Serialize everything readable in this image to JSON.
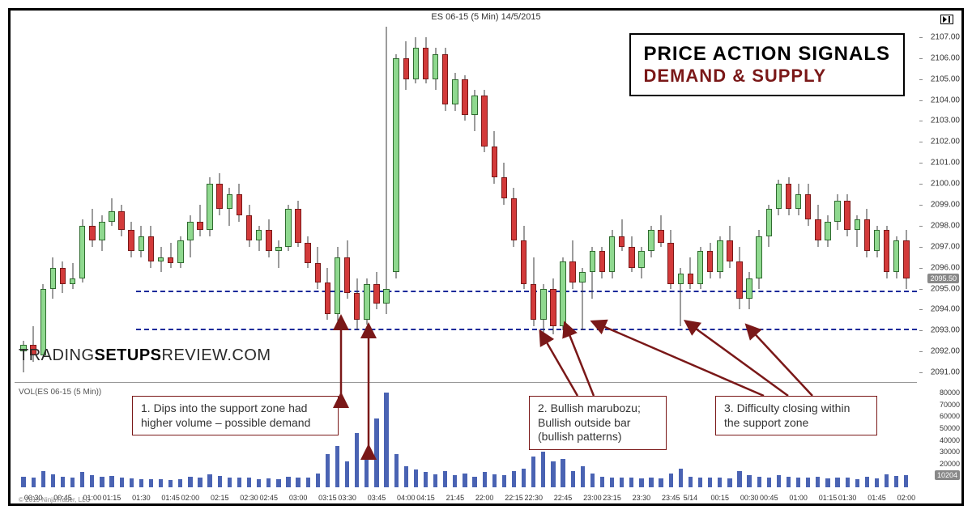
{
  "header": {
    "chart_title": "ES 06-15 (5 Min)  14/5/2015"
  },
  "title_box": {
    "line1": "PRICE ACTION SIGNALS",
    "line2": "DEMAND & SUPPLY"
  },
  "watermark": {
    "part1": "TRADING",
    "part2": "SETUPS",
    "part3": "REVIEW.COM"
  },
  "volume_label": "VOL(ES 06-15 (5 Min))",
  "copyright": "© 2015 NinjaTrader, LLC",
  "price_axis": {
    "min": 2090.5,
    "max": 2107.5,
    "ticks": [
      2091.0,
      2092.0,
      2093.0,
      2094.0,
      2095.0,
      2096.0,
      2097.0,
      2098.0,
      2099.0,
      2100.0,
      2101.0,
      2102.0,
      2103.0,
      2104.0,
      2105.0,
      2106.0,
      2107.0
    ],
    "last_price": 2095.5
  },
  "volume_axis": {
    "max": 85000,
    "ticks": [
      10000,
      20000,
      30000,
      40000,
      50000,
      60000,
      70000,
      80000
    ],
    "last_vol": 10204
  },
  "support_zone": {
    "upper": 2094.9,
    "lower": 2093.1
  },
  "x_labels": [
    "00:30",
    "00:45",
    "01:00",
    "01:15",
    "01:30",
    "01:45",
    "02:00",
    "02:15",
    "02:30",
    "02:45",
    "03:00",
    "03:15",
    "03:30",
    "03:45",
    "04:00",
    "04:15",
    "21:45",
    "22:00",
    "22:15",
    "22:30",
    "22:45",
    "23:00",
    "23:15",
    "23:30",
    "23:45",
    "5/14",
    "00:15",
    "00:30",
    "00:45",
    "01:00",
    "01:15",
    "01:30",
    "01:45",
    "02:00"
  ],
  "colors": {
    "bull_fill": "#8fd98f",
    "bull_border": "#2f6b2f",
    "bear_fill": "#d33a3a",
    "bear_border": "#7a1818",
    "wick": "#3a3a3a",
    "volume": "#4a63b3",
    "support_line": "#1a2a9a",
    "arrow": "#7a1818"
  },
  "candles": [
    {
      "o": 2092.0,
      "h": 2092.5,
      "l": 2091.0,
      "c": 2092.3,
      "v": 9000
    },
    {
      "o": 2092.3,
      "h": 2093.2,
      "l": 2091.5,
      "c": 2091.8,
      "v": 8000
    },
    {
      "o": 2091.8,
      "h": 2095.2,
      "l": 2091.8,
      "c": 2095.0,
      "v": 14000
    },
    {
      "o": 2095.0,
      "h": 2096.5,
      "l": 2094.5,
      "c": 2096.0,
      "v": 11000
    },
    {
      "o": 2096.0,
      "h": 2096.3,
      "l": 2094.8,
      "c": 2095.2,
      "v": 9000
    },
    {
      "o": 2095.2,
      "h": 2096.2,
      "l": 2095.0,
      "c": 2095.5,
      "v": 8000
    },
    {
      "o": 2095.5,
      "h": 2098.3,
      "l": 2095.3,
      "c": 2098.0,
      "v": 13000
    },
    {
      "o": 2098.0,
      "h": 2098.8,
      "l": 2097.0,
      "c": 2097.3,
      "v": 10000
    },
    {
      "o": 2097.3,
      "h": 2098.5,
      "l": 2096.8,
      "c": 2098.2,
      "v": 9000
    },
    {
      "o": 2098.2,
      "h": 2099.3,
      "l": 2098.0,
      "c": 2098.7,
      "v": 9500
    },
    {
      "o": 2098.7,
      "h": 2099.0,
      "l": 2097.5,
      "c": 2097.8,
      "v": 8000
    },
    {
      "o": 2097.8,
      "h": 2098.2,
      "l": 2096.5,
      "c": 2096.8,
      "v": 7500
    },
    {
      "o": 2096.8,
      "h": 2098.0,
      "l": 2096.5,
      "c": 2097.5,
      "v": 7000
    },
    {
      "o": 2097.5,
      "h": 2098.0,
      "l": 2096.0,
      "c": 2096.3,
      "v": 7200
    },
    {
      "o": 2096.3,
      "h": 2097.0,
      "l": 2095.8,
      "c": 2096.5,
      "v": 6800
    },
    {
      "o": 2096.5,
      "h": 2097.2,
      "l": 2096.0,
      "c": 2096.2,
      "v": 6500
    },
    {
      "o": 2096.2,
      "h": 2097.5,
      "l": 2096.0,
      "c": 2097.3,
      "v": 7000
    },
    {
      "o": 2097.3,
      "h": 2098.5,
      "l": 2096.5,
      "c": 2098.2,
      "v": 9000
    },
    {
      "o": 2098.2,
      "h": 2099.0,
      "l": 2097.5,
      "c": 2097.8,
      "v": 8500
    },
    {
      "o": 2097.8,
      "h": 2100.3,
      "l": 2097.5,
      "c": 2100.0,
      "v": 11000
    },
    {
      "o": 2100.0,
      "h": 2100.5,
      "l": 2098.5,
      "c": 2098.8,
      "v": 9500
    },
    {
      "o": 2098.8,
      "h": 2099.8,
      "l": 2098.0,
      "c": 2099.5,
      "v": 8000
    },
    {
      "o": 2099.5,
      "h": 2100.0,
      "l": 2098.2,
      "c": 2098.5,
      "v": 8200
    },
    {
      "o": 2098.5,
      "h": 2099.0,
      "l": 2097.0,
      "c": 2097.3,
      "v": 8500
    },
    {
      "o": 2097.3,
      "h": 2098.0,
      "l": 2096.8,
      "c": 2097.8,
      "v": 7000
    },
    {
      "o": 2097.8,
      "h": 2098.3,
      "l": 2096.5,
      "c": 2096.8,
      "v": 7500
    },
    {
      "o": 2096.8,
      "h": 2097.3,
      "l": 2096.0,
      "c": 2097.0,
      "v": 6800
    },
    {
      "o": 2097.0,
      "h": 2099.0,
      "l": 2096.8,
      "c": 2098.8,
      "v": 9000
    },
    {
      "o": 2098.8,
      "h": 2099.2,
      "l": 2097.0,
      "c": 2097.2,
      "v": 8500
    },
    {
      "o": 2097.2,
      "h": 2097.5,
      "l": 2096.0,
      "c": 2096.2,
      "v": 8000
    },
    {
      "o": 2096.2,
      "h": 2097.0,
      "l": 2095.0,
      "c": 2095.3,
      "v": 12000
    },
    {
      "o": 2095.3,
      "h": 2096.0,
      "l": 2093.5,
      "c": 2093.8,
      "v": 28000
    },
    {
      "o": 2093.8,
      "h": 2097.0,
      "l": 2093.2,
      "c": 2096.5,
      "v": 35000
    },
    {
      "o": 2096.5,
      "h": 2097.3,
      "l": 2094.5,
      "c": 2094.8,
      "v": 22000
    },
    {
      "o": 2094.8,
      "h": 2095.5,
      "l": 2093.0,
      "c": 2093.5,
      "v": 46000
    },
    {
      "o": 2093.5,
      "h": 2095.5,
      "l": 2093.3,
      "c": 2095.2,
      "v": 30000
    },
    {
      "o": 2095.2,
      "h": 2095.8,
      "l": 2094.0,
      "c": 2094.3,
      "v": 58000
    },
    {
      "o": 2094.3,
      "h": 2107.5,
      "l": 2093.8,
      "c": 2095.0,
      "v": 80000
    },
    {
      "o": 2095.8,
      "h": 2106.2,
      "l": 2095.5,
      "c": 2106.0,
      "v": 28000
    },
    {
      "o": 2106.0,
      "h": 2106.8,
      "l": 2104.5,
      "c": 2105.0,
      "v": 18000
    },
    {
      "o": 2105.0,
      "h": 2107.0,
      "l": 2104.8,
      "c": 2106.5,
      "v": 15000
    },
    {
      "o": 2106.5,
      "h": 2107.0,
      "l": 2104.8,
      "c": 2105.0,
      "v": 13000
    },
    {
      "o": 2105.0,
      "h": 2106.5,
      "l": 2104.5,
      "c": 2106.2,
      "v": 11000
    },
    {
      "o": 2106.2,
      "h": 2106.5,
      "l": 2103.5,
      "c": 2103.8,
      "v": 14000
    },
    {
      "o": 2103.8,
      "h": 2105.3,
      "l": 2103.5,
      "c": 2105.0,
      "v": 10000
    },
    {
      "o": 2105.0,
      "h": 2105.2,
      "l": 2103.0,
      "c": 2103.3,
      "v": 12000
    },
    {
      "o": 2103.3,
      "h": 2104.5,
      "l": 2102.5,
      "c": 2104.2,
      "v": 9000
    },
    {
      "o": 2104.2,
      "h": 2104.5,
      "l": 2101.5,
      "c": 2101.8,
      "v": 13000
    },
    {
      "o": 2101.8,
      "h": 2102.5,
      "l": 2100.0,
      "c": 2100.3,
      "v": 11000
    },
    {
      "o": 2100.3,
      "h": 2101.0,
      "l": 2099.0,
      "c": 2099.3,
      "v": 10000
    },
    {
      "o": 2099.3,
      "h": 2099.8,
      "l": 2097.0,
      "c": 2097.3,
      "v": 14000
    },
    {
      "o": 2097.3,
      "h": 2098.0,
      "l": 2095.0,
      "c": 2095.2,
      "v": 16000
    },
    {
      "o": 2095.2,
      "h": 2096.5,
      "l": 2093.2,
      "c": 2093.5,
      "v": 26000
    },
    {
      "o": 2093.5,
      "h": 2095.2,
      "l": 2092.5,
      "c": 2095.0,
      "v": 30000
    },
    {
      "o": 2095.0,
      "h": 2095.5,
      "l": 2092.8,
      "c": 2093.2,
      "v": 22000
    },
    {
      "o": 2093.2,
      "h": 2096.5,
      "l": 2093.0,
      "c": 2096.3,
      "v": 24000
    },
    {
      "o": 2096.3,
      "h": 2097.3,
      "l": 2095.0,
      "c": 2095.3,
      "v": 14000
    },
    {
      "o": 2095.3,
      "h": 2096.0,
      "l": 2093.0,
      "c": 2095.8,
      "v": 18000
    },
    {
      "o": 2095.8,
      "h": 2097.0,
      "l": 2094.5,
      "c": 2096.8,
      "v": 12000
    },
    {
      "o": 2096.8,
      "h": 2097.0,
      "l": 2095.5,
      "c": 2095.8,
      "v": 9000
    },
    {
      "o": 2095.8,
      "h": 2097.8,
      "l": 2095.5,
      "c": 2097.5,
      "v": 8500
    },
    {
      "o": 2097.5,
      "h": 2098.3,
      "l": 2096.8,
      "c": 2097.0,
      "v": 8000
    },
    {
      "o": 2097.0,
      "h": 2097.5,
      "l": 2095.8,
      "c": 2096.0,
      "v": 8200
    },
    {
      "o": 2096.0,
      "h": 2097.0,
      "l": 2095.5,
      "c": 2096.8,
      "v": 7500
    },
    {
      "o": 2096.8,
      "h": 2098.0,
      "l": 2096.5,
      "c": 2097.8,
      "v": 8000
    },
    {
      "o": 2097.8,
      "h": 2098.5,
      "l": 2097.0,
      "c": 2097.2,
      "v": 7800
    },
    {
      "o": 2097.2,
      "h": 2097.8,
      "l": 2095.0,
      "c": 2095.2,
      "v": 12000
    },
    {
      "o": 2095.2,
      "h": 2096.0,
      "l": 2093.2,
      "c": 2095.7,
      "v": 16000
    },
    {
      "o": 2095.7,
      "h": 2096.5,
      "l": 2095.0,
      "c": 2095.2,
      "v": 9000
    },
    {
      "o": 2095.2,
      "h": 2097.0,
      "l": 2095.0,
      "c": 2096.8,
      "v": 8500
    },
    {
      "o": 2096.8,
      "h": 2097.2,
      "l": 2095.5,
      "c": 2095.8,
      "v": 8200
    },
    {
      "o": 2095.8,
      "h": 2097.5,
      "l": 2095.5,
      "c": 2097.3,
      "v": 8000
    },
    {
      "o": 2097.3,
      "h": 2098.0,
      "l": 2096.0,
      "c": 2096.3,
      "v": 7800
    },
    {
      "o": 2096.3,
      "h": 2097.0,
      "l": 2094.0,
      "c": 2094.5,
      "v": 14000
    },
    {
      "o": 2094.5,
      "h": 2095.8,
      "l": 2094.0,
      "c": 2095.5,
      "v": 10000
    },
    {
      "o": 2095.5,
      "h": 2097.8,
      "l": 2095.0,
      "c": 2097.5,
      "v": 9000
    },
    {
      "o": 2097.5,
      "h": 2099.0,
      "l": 2097.0,
      "c": 2098.8,
      "v": 8500
    },
    {
      "o": 2098.8,
      "h": 2100.2,
      "l": 2098.5,
      "c": 2100.0,
      "v": 10000
    },
    {
      "o": 2100.0,
      "h": 2100.3,
      "l": 2098.5,
      "c": 2098.8,
      "v": 9200
    },
    {
      "o": 2098.8,
      "h": 2100.0,
      "l": 2098.5,
      "c": 2099.5,
      "v": 8000
    },
    {
      "o": 2099.5,
      "h": 2100.0,
      "l": 2098.0,
      "c": 2098.3,
      "v": 8200
    },
    {
      "o": 2098.3,
      "h": 2099.0,
      "l": 2097.0,
      "c": 2097.3,
      "v": 9000
    },
    {
      "o": 2097.3,
      "h": 2098.5,
      "l": 2097.0,
      "c": 2098.2,
      "v": 7500
    },
    {
      "o": 2098.2,
      "h": 2099.5,
      "l": 2097.8,
      "c": 2099.2,
      "v": 8000
    },
    {
      "o": 2099.2,
      "h": 2099.5,
      "l": 2097.5,
      "c": 2097.8,
      "v": 8500
    },
    {
      "o": 2097.8,
      "h": 2098.5,
      "l": 2097.0,
      "c": 2098.3,
      "v": 7200
    },
    {
      "o": 2098.3,
      "h": 2098.8,
      "l": 2096.5,
      "c": 2096.8,
      "v": 9000
    },
    {
      "o": 2096.8,
      "h": 2098.0,
      "l": 2096.5,
      "c": 2097.8,
      "v": 7800
    },
    {
      "o": 2097.8,
      "h": 2098.0,
      "l": 2095.5,
      "c": 2095.8,
      "v": 11000
    },
    {
      "o": 2095.8,
      "h": 2097.5,
      "l": 2095.5,
      "c": 2097.3,
      "v": 9500
    },
    {
      "o": 2097.3,
      "h": 2097.8,
      "l": 2095.0,
      "c": 2095.5,
      "v": 10200
    }
  ],
  "annotations": {
    "box1": "1. Dips into the support zone had higher volume – possible demand",
    "box2": "2. Bullish marubozu; Bullish outside bar (bullish patterns)",
    "box3": "3. Difficulty closing within the support zone"
  }
}
